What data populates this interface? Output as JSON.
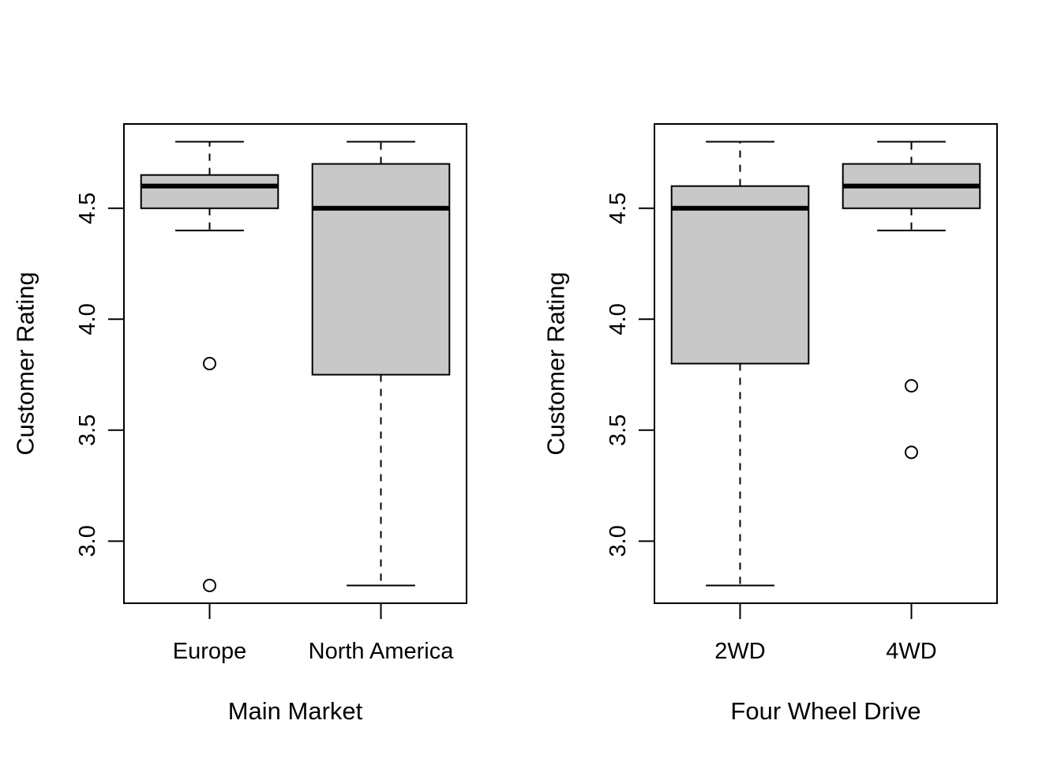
{
  "colors": {
    "box_fill": "#c8c8c8",
    "stroke": "#000000",
    "background": "#ffffff"
  },
  "chart_data": [
    {
      "type": "boxplot",
      "xlabel": "Main Market",
      "ylabel": "Customer Rating",
      "ylim": [
        2.72,
        4.88
      ],
      "y_ticks": [
        3.0,
        3.5,
        4.0,
        4.5
      ],
      "y_tick_labels": [
        "3.0",
        "3.5",
        "4.0",
        "4.5"
      ],
      "categories": [
        "Europe",
        "North America"
      ],
      "boxes": [
        {
          "category": "Europe",
          "whisker_low": 4.4,
          "q1": 4.5,
          "median": 4.6,
          "q3": 4.65,
          "whisker_high": 4.8,
          "outliers": [
            3.8,
            2.8
          ]
        },
        {
          "category": "North America",
          "whisker_low": 2.8,
          "q1": 3.75,
          "median": 4.5,
          "q3": 4.7,
          "whisker_high": 4.8,
          "outliers": []
        }
      ],
      "grid": false
    },
    {
      "type": "boxplot",
      "xlabel": "Four Wheel Drive",
      "ylabel": "Customer Rating",
      "ylim": [
        2.72,
        4.88
      ],
      "y_ticks": [
        3.0,
        3.5,
        4.0,
        4.5
      ],
      "y_tick_labels": [
        "3.0",
        "3.5",
        "4.0",
        "4.5"
      ],
      "categories": [
        "2WD",
        "4WD"
      ],
      "boxes": [
        {
          "category": "2WD",
          "whisker_low": 2.8,
          "q1": 3.8,
          "median": 4.5,
          "q3": 4.6,
          "whisker_high": 4.8,
          "outliers": []
        },
        {
          "category": "4WD",
          "whisker_low": 4.4,
          "q1": 4.5,
          "median": 4.6,
          "q3": 4.7,
          "whisker_high": 4.8,
          "outliers": [
            3.7,
            3.4
          ]
        }
      ],
      "grid": false
    }
  ]
}
